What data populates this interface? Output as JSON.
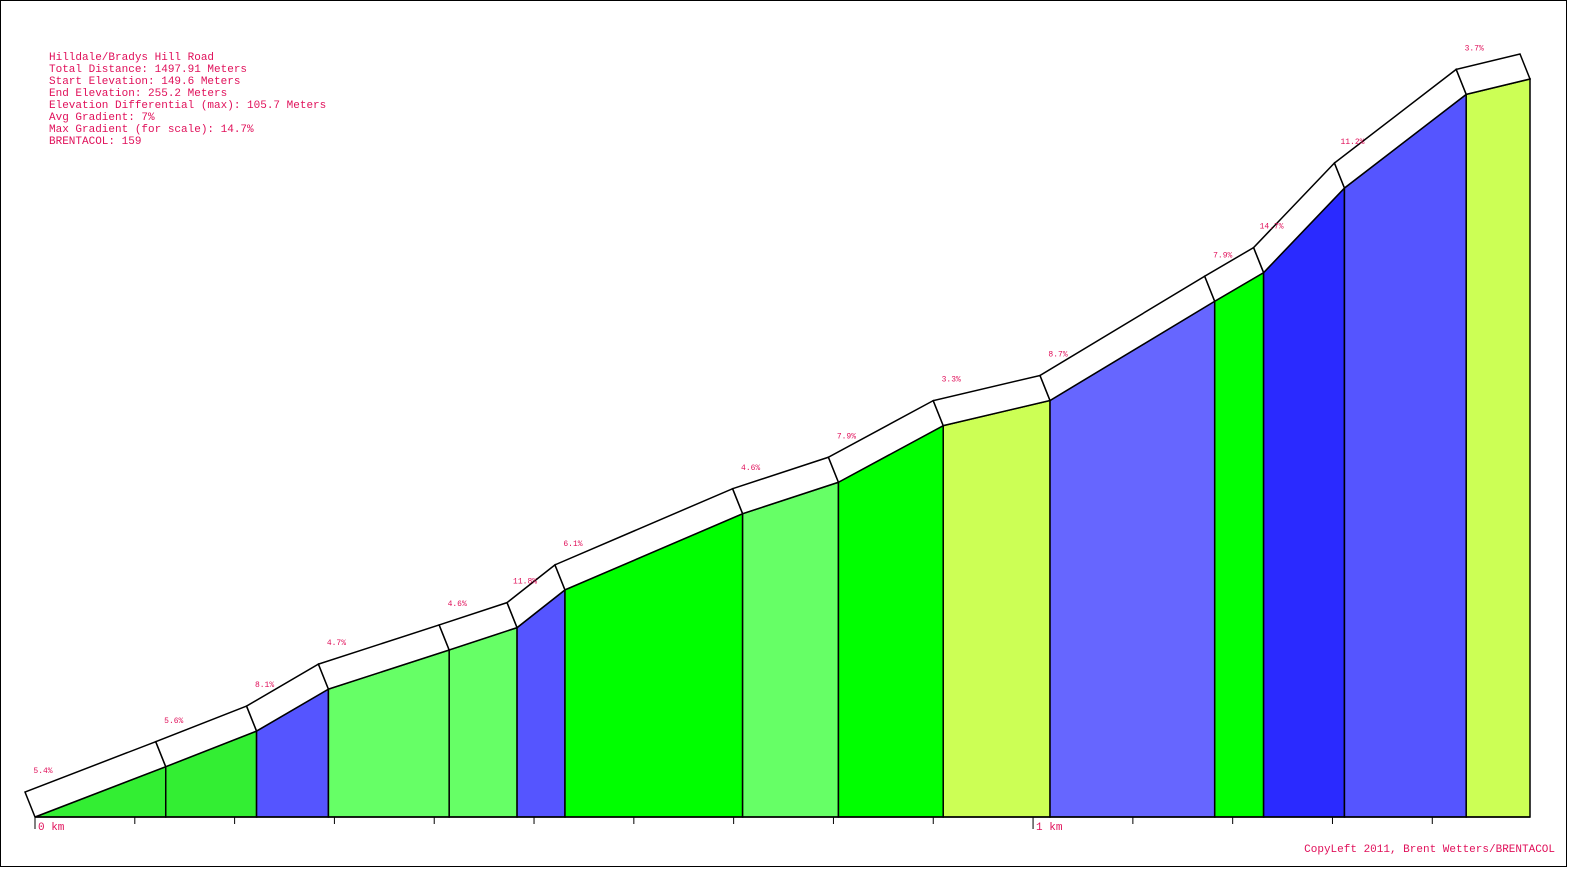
{
  "chart_data": {
    "type": "elevation_profile",
    "info": [
      "Hilldale/Bradys Hill Road",
      "Total Distance: 1497.91 Meters",
      "Start Elevation: 149.6 Meters",
      "End Elevation: 255.2 Meters",
      "Elevation Differential (max): 105.7 Meters",
      "Avg Gradient: 7%",
      "Max Gradient (for scale): 14.7%",
      "BRENTACOL: 159"
    ],
    "credit": "CopyLeft 2011, Brent Wetters/BRENTACOL",
    "x": [
      0,
      131,
      222,
      294,
      415,
      483,
      531,
      709,
      805,
      910,
      1017,
      1182,
      1231,
      1312,
      1434,
      1497.91
    ],
    "elevation": [
      149.6,
      156.8,
      161.9,
      167.9,
      173.5,
      176.7,
      182.1,
      193.0,
      197.5,
      205.6,
      209.2,
      223.4,
      227.5,
      239.6,
      253.0,
      255.2
    ],
    "segments": {
      "values": [
        5.4,
        5.6,
        8.1,
        4.7,
        4.6,
        11.8,
        6.1,
        4.6,
        7.9,
        3.3,
        8.7,
        7.9,
        14.7,
        11.2,
        3.7
      ],
      "value_labels": [
        "5.4%",
        "5.6%",
        "8.1%",
        "4.7%",
        "4.6%",
        "11.8%",
        "6.1%",
        "4.6%",
        "7.9%",
        "3.3%",
        "8.7%",
        "7.9%",
        "14.7%",
        "11.2%",
        "3.7%"
      ],
      "colors": [
        "#33ee33",
        "#33ee33",
        "#5555ff",
        "#66ff66",
        "#66ff66",
        "#5555ff",
        "#00ff00",
        "#66ff66",
        "#00ff00",
        "#ccff55",
        "#6666ff",
        "#00ff00",
        "#2a2aff",
        "#5555ff",
        "#ccff55"
      ]
    },
    "xlim": [
      0,
      1497.91
    ],
    "ylim": [
      149.6,
      255.2
    ],
    "xticks": [
      {
        "value": 0,
        "label": "0 km"
      },
      100,
      200,
      300,
      400,
      500,
      600,
      700,
      800,
      900,
      {
        "value": 1000,
        "label": "1 km"
      },
      1100,
      1200,
      1300,
      1400
    ]
  }
}
